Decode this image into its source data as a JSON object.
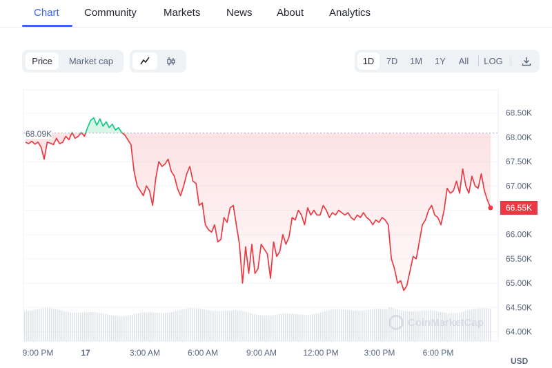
{
  "nav": {
    "tabs": [
      {
        "label": "Chart",
        "active": true
      },
      {
        "label": "Community"
      },
      {
        "label": "Markets"
      },
      {
        "label": "News"
      },
      {
        "label": "About"
      },
      {
        "label": "Analytics"
      }
    ]
  },
  "toolbar": {
    "metric": [
      {
        "label": "Price",
        "active": true
      },
      {
        "label": "Market cap"
      }
    ],
    "chart_style_icons": [
      "line-chart-icon",
      "candlestick-icon"
    ],
    "ranges": [
      {
        "label": "1D",
        "active": true
      },
      {
        "label": "7D"
      },
      {
        "label": "1M"
      },
      {
        "label": "1Y"
      },
      {
        "label": "All"
      }
    ],
    "log_label": "LOG",
    "download_icon": "download-icon"
  },
  "watermark": "CoinMarketCap",
  "currency": "USD",
  "colors": {
    "up": "#16c784",
    "down": "#ea3943",
    "accent": "#3861fb"
  },
  "chart_data": {
    "type": "line",
    "x_tick_labels": [
      "9:00 PM",
      "17",
      "3:00 AM",
      "6:00 AM",
      "9:00 AM",
      "12:00 PM",
      "3:00 PM",
      "6:00 PM"
    ],
    "y_tick_labels": [
      "68.50K",
      "68.00K",
      "67.50K",
      "67.00K",
      "66.50K",
      "66.00K",
      "65.50K",
      "65.00K",
      "64.50K",
      "64.00K"
    ],
    "ylim": [
      64000,
      68900
    ],
    "reference_value": 68090,
    "reference_label": "68.09K",
    "current_value": 66550,
    "current_label": "66.55K",
    "series": [
      {
        "values": [
          67900,
          67870,
          67920,
          67860,
          67900,
          67800,
          67550,
          67900,
          67880,
          67850,
          67980,
          67870,
          67900,
          68020,
          67950,
          68100,
          67980,
          68020,
          68100,
          68020,
          68200,
          68350,
          68400,
          68250,
          68380,
          68230,
          68320,
          68200,
          68270,
          68150,
          68200,
          68100,
          68050,
          67950,
          67850,
          67300,
          67000,
          66900,
          66800,
          67000,
          66900,
          66600,
          67150,
          67500,
          67400,
          67450,
          67550,
          67300,
          67200,
          66950,
          66800,
          67000,
          67250,
          67400,
          67100,
          67050,
          66600,
          66650,
          66200,
          66100,
          66050,
          66200,
          65850,
          65900,
          66350,
          66250,
          66550,
          66600,
          66200,
          65800,
          65000,
          65750,
          65200,
          65800,
          65200,
          65300,
          65800,
          65700,
          65600,
          65100,
          65850,
          65550,
          65650,
          66000,
          65800,
          65950,
          66350,
          66300,
          66500,
          66400,
          66200,
          66550,
          66400,
          66500,
          66400,
          66400,
          66600,
          66500,
          66350,
          66450,
          66400,
          66500,
          66450,
          66400,
          66450,
          66350,
          66300,
          66400,
          66350,
          66450,
          66350,
          66300,
          66200,
          66300,
          66250,
          66350,
          66300,
          66200,
          65500,
          65300,
          65000,
          65050,
          64850,
          64950,
          65250,
          65550,
          65500,
          65850,
          66200,
          66300,
          66500,
          66600,
          66400,
          66350,
          66200,
          66500,
          66950,
          66850,
          66900,
          67100,
          66850,
          67350,
          67000,
          66850,
          67200,
          67000,
          66950,
          67250,
          66900,
          66700,
          66550
        ]
      }
    ]
  }
}
